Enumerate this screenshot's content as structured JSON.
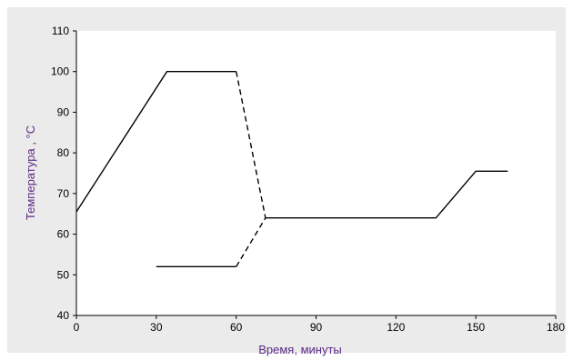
{
  "chart_data": {
    "type": "line",
    "xlabel": "Время, минуты",
    "ylabel": "Температура , °C",
    "xlim": [
      0,
      180
    ],
    "ylim": [
      40,
      110
    ],
    "xticks": [
      0,
      30,
      60,
      90,
      120,
      150,
      180
    ],
    "yticks": [
      40,
      50,
      60,
      70,
      80,
      90,
      100,
      110
    ],
    "grid": false,
    "series": [
      {
        "style": "solid",
        "x": [
          0,
          34,
          60
        ],
        "y": [
          65.5,
          100,
          100
        ]
      },
      {
        "style": "dashed",
        "x": [
          60,
          71
        ],
        "y": [
          100,
          64
        ]
      },
      {
        "style": "solid",
        "x": [
          30,
          60
        ],
        "y": [
          52,
          52
        ]
      },
      {
        "style": "dashed",
        "x": [
          60,
          71
        ],
        "y": [
          52,
          64
        ]
      },
      {
        "style": "solid",
        "x": [
          71,
          135,
          150,
          162
        ],
        "y": [
          64,
          64,
          75.5,
          75.5
        ]
      }
    ],
    "colors": {
      "line": "#000000",
      "axis_title": "#5b2a86",
      "background": "#ebebeb",
      "plot": "#ffffff"
    }
  }
}
